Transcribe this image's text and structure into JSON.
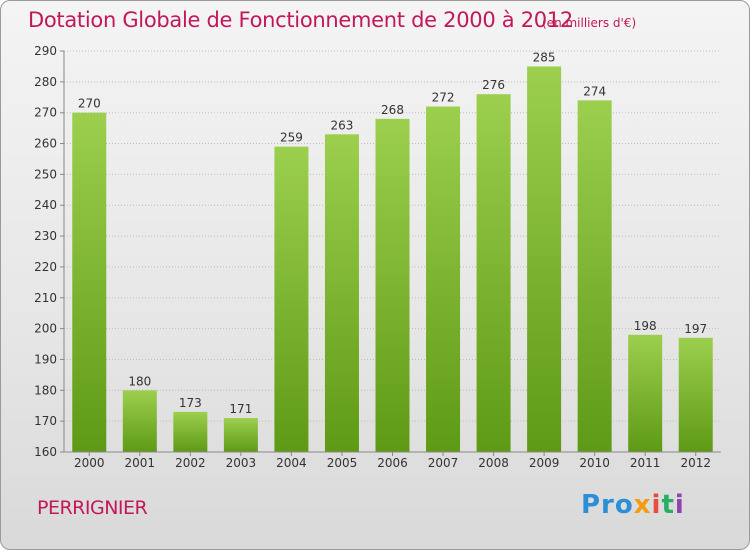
{
  "title": "Dotation Globale de Fonctionnement de 2000 à 2012",
  "unit_label": "(en milliers d'€)",
  "place": "PERRIGNIER",
  "logo": {
    "text": "Proxiti",
    "letters": [
      "Pro",
      "x",
      "i",
      "t",
      "i"
    ]
  },
  "colors": {
    "bar_top": "#9ccf4e",
    "bar_bottom": "#5e9a16",
    "title": "#c2185b",
    "grid": "#bdbdbd"
  },
  "chart_data": {
    "type": "bar",
    "categories": [
      "2000",
      "2001",
      "2002",
      "2003",
      "2004",
      "2005",
      "2006",
      "2007",
      "2008",
      "2009",
      "2010",
      "2011",
      "2012"
    ],
    "values": [
      270,
      180,
      173,
      171,
      259,
      263,
      268,
      272,
      276,
      285,
      274,
      198,
      197
    ],
    "ylim": [
      160,
      290
    ],
    "yticks": [
      160,
      170,
      180,
      190,
      200,
      210,
      220,
      230,
      240,
      250,
      260,
      270,
      280,
      290
    ],
    "grid": true
  }
}
